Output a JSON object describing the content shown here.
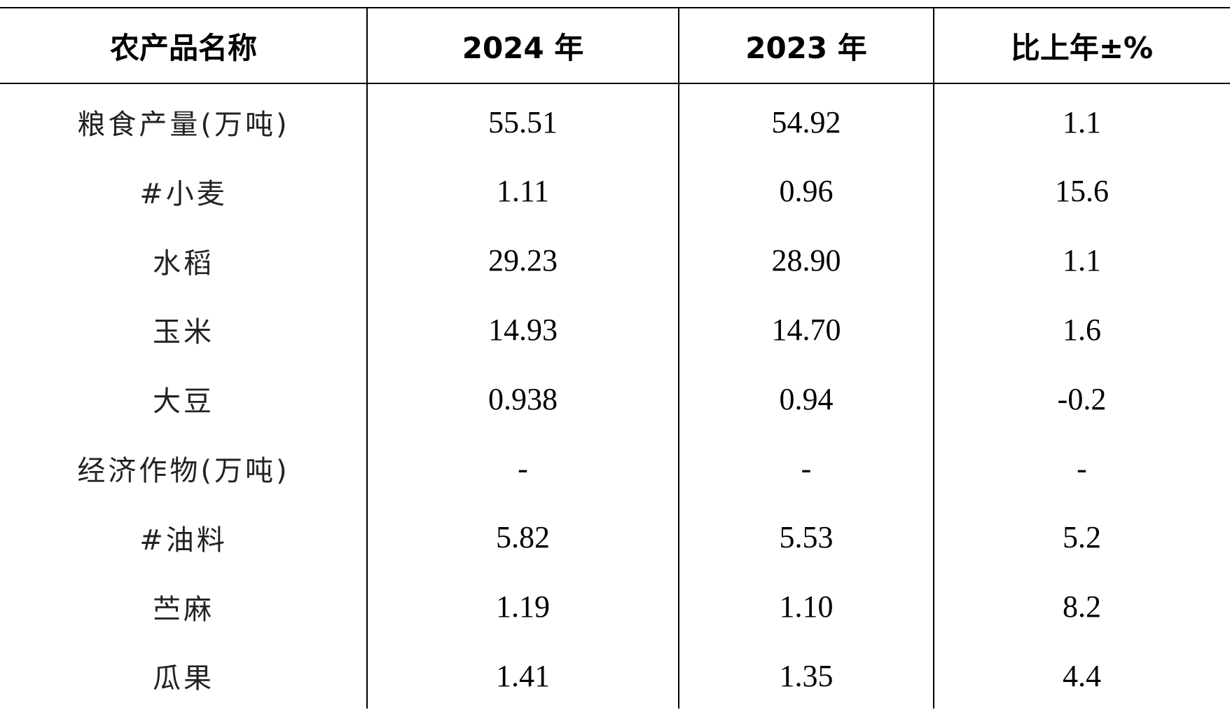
{
  "table": {
    "header": [
      "农产品名称",
      "2024 年",
      "2023 年",
      "比上年±%"
    ],
    "rows": [
      [
        "粮食产量(万吨)",
        "55.51",
        "54.92",
        "1.1"
      ],
      [
        "#小麦",
        "1.11",
        "0.96",
        "15.6"
      ],
      [
        "水稻",
        "29.23",
        "28.90",
        "1.1"
      ],
      [
        "玉米",
        "14.93",
        "14.70",
        "1.6"
      ],
      [
        "大豆",
        "0.938",
        "0.94",
        "-0.2"
      ],
      [
        "经济作物(万吨)",
        "-",
        "-",
        "-"
      ],
      [
        "#油料",
        "5.82",
        "5.53",
        "5.2"
      ],
      [
        "苎麻",
        "1.19",
        "1.10",
        "8.2"
      ],
      [
        "瓜果",
        "1.41",
        "1.35",
        "4.4"
      ]
    ]
  }
}
